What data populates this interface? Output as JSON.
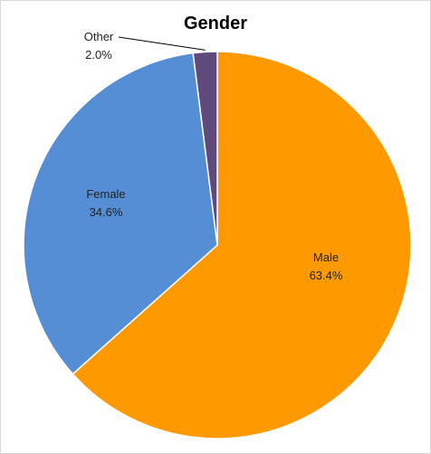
{
  "chart_data": {
    "type": "pie",
    "title": "Gender",
    "start_angle_deg": 0,
    "direction": "clockwise",
    "slices": [
      {
        "name": "Male",
        "value": 63.4,
        "label": "63.4%",
        "color": "#FF9900"
      },
      {
        "name": "Female",
        "value": 34.6,
        "label": "34.6%",
        "color": "#558ED5"
      },
      {
        "name": "Other",
        "value": 2.0,
        "label": "2.0%",
        "color": "#604A7B"
      }
    ],
    "data_labels": "name-and-percent",
    "legend": "none"
  }
}
